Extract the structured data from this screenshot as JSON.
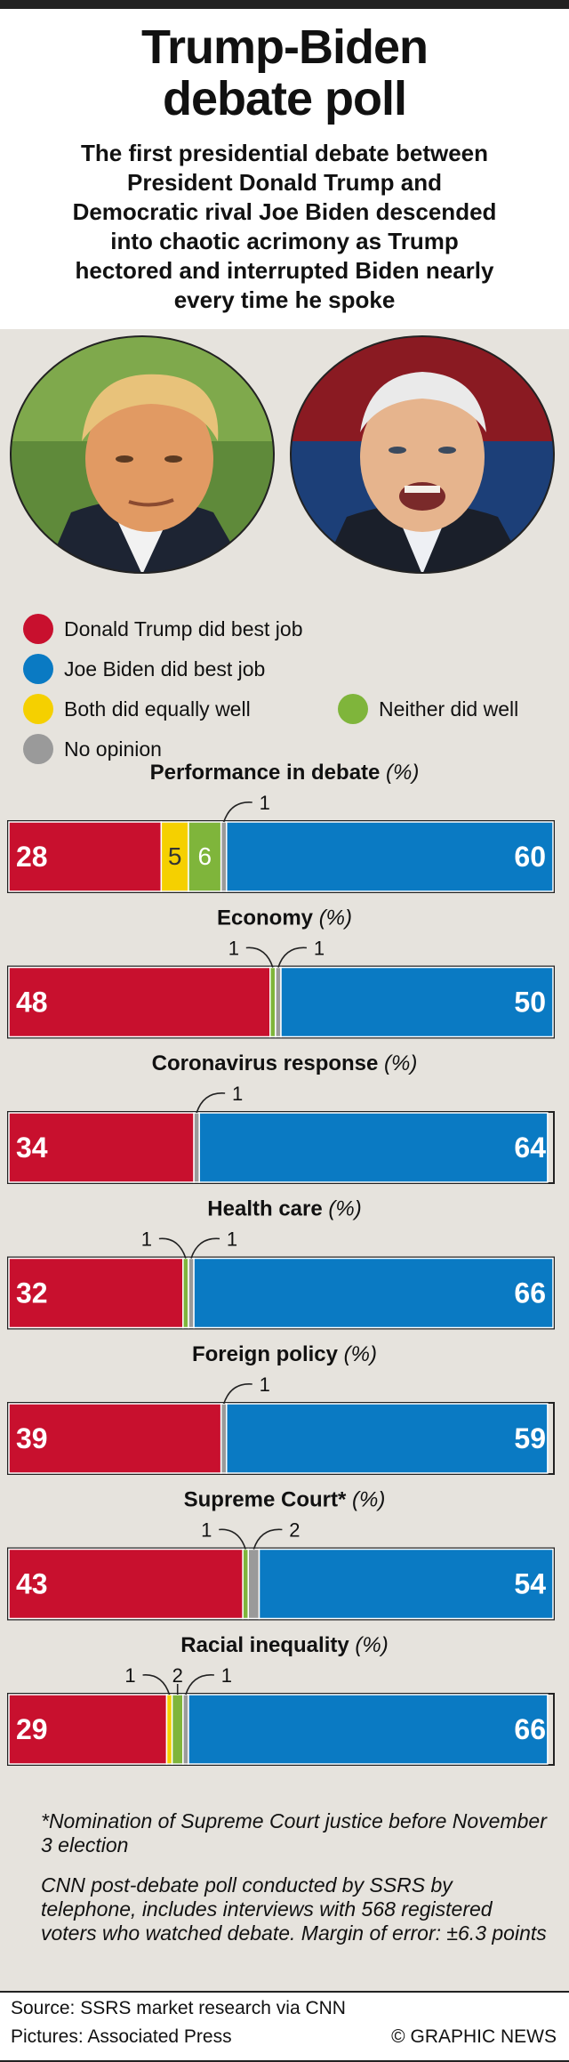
{
  "header": {
    "title_line1": "Trump-Biden",
    "title_line2": "debate poll",
    "subtitle_lines": [
      "The first presidential debate between",
      "President Donald Trump and",
      "Democratic rival Joe Biden descended",
      "into chaotic acrimony as Trump",
      "hectored and interrupted Biden nearly",
      "every time he spoke"
    ]
  },
  "portraits": {
    "trump": "Donald Trump portrait photo",
    "biden": "Joe Biden portrait photo"
  },
  "colors": {
    "trump": "#c8102e",
    "biden": "#0a7ac3",
    "both": "#f5d000",
    "neither": "#7fb53b",
    "no_opinion": "#9a9a9a"
  },
  "legend": {
    "trump": "Donald Trump did best job",
    "biden": "Joe Biden did best job",
    "both": "Both did equally well",
    "neither": "Neither did well",
    "no_opinion": "No opinion"
  },
  "chart_data": {
    "type": "bar",
    "stacked": true,
    "unit": "%",
    "series_names": [
      "Donald Trump did best job",
      "Both did equally well",
      "Neither did well",
      "No opinion",
      "Joe Biden did best job"
    ],
    "categories": [
      {
        "title": "Performance in debate",
        "unit": "(%)",
        "trump": 28,
        "both": 5,
        "neither": 6,
        "no_opinion": 1,
        "biden": 60
      },
      {
        "title": "Economy",
        "unit": "(%)",
        "trump": 48,
        "both": 0,
        "neither": 1,
        "no_opinion": 1,
        "biden": 50
      },
      {
        "title": "Coronavirus response",
        "unit": "(%)",
        "trump": 34,
        "both": 0,
        "neither": 0,
        "no_opinion": 1,
        "biden": 64
      },
      {
        "title": "Health care",
        "unit": "(%)",
        "trump": 32,
        "both": 0,
        "neither": 1,
        "no_opinion": 1,
        "biden": 66
      },
      {
        "title": "Foreign policy",
        "unit": "(%)",
        "trump": 39,
        "both": 0,
        "neither": 0,
        "no_opinion": 1,
        "biden": 59
      },
      {
        "title": "Supreme Court*",
        "unit": "(%)",
        "trump": 43,
        "both": 0,
        "neither": 1,
        "no_opinion": 2,
        "biden": 54
      },
      {
        "title": "Racial inequality",
        "unit": "(%)",
        "trump": 29,
        "both": 1,
        "neither": 2,
        "no_opinion": 1,
        "biden": 66
      }
    ]
  },
  "notes": {
    "footnote": "*Nomination of Supreme Court justice before November 3 election",
    "method": "CNN post-debate poll conducted by SSRS by telephone, includes interviews with 568 registered voters who watched debate. Margin of error: ±6.3 points"
  },
  "footer": {
    "source": "Source: SSRS market research via CNN",
    "pictures": "Pictures: Associated Press",
    "credit": "© GRAPHIC NEWS"
  }
}
